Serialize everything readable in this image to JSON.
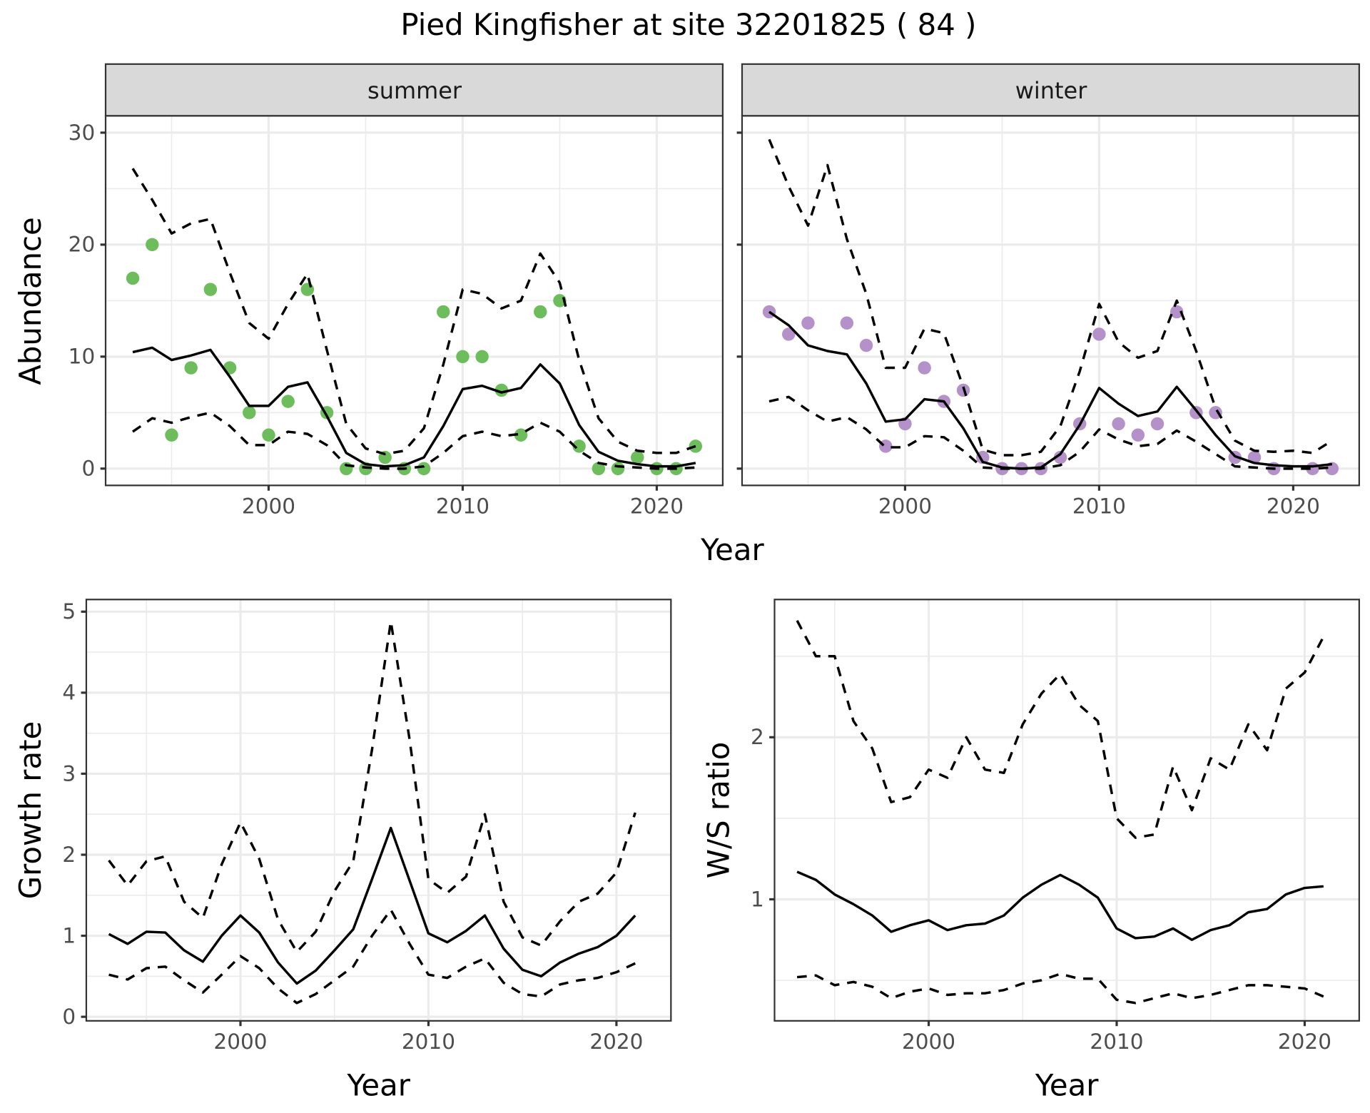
{
  "chart_data": {
    "title": "Pied Kingfisher at site 32201825 ( 84 )",
    "panels": [
      {
        "id": "summer",
        "type": "line",
        "facet_label": "summer",
        "xlabel": "Year",
        "ylabel": "Abundance",
        "xlim": [
          1991.6,
          2023.4
        ],
        "ylim": [
          -1.5,
          31.5
        ],
        "xticks": [
          2000,
          2010,
          2020
        ],
        "yticks": [
          0,
          10,
          20,
          30
        ],
        "grid": true,
        "point_color": "#6dbd5c",
        "x": [
          1993,
          1994,
          1995,
          1996,
          1997,
          1998,
          1999,
          2000,
          2001,
          2002,
          2003,
          2004,
          2005,
          2006,
          2007,
          2008,
          2009,
          2010,
          2011,
          2012,
          2013,
          2014,
          2015,
          2016,
          2017,
          2018,
          2019,
          2020,
          2021,
          2022
        ],
        "series": [
          {
            "name": "observed",
            "style": "points",
            "values": [
              17,
              20,
              3,
              9,
              16,
              9,
              5,
              3,
              6,
              16,
              5,
              0,
              0,
              1,
              0,
              0,
              14,
              10,
              10,
              7,
              3,
              14,
              15,
              2,
              0,
              0,
              1,
              0,
              0,
              2
            ]
          },
          {
            "name": "mean",
            "style": "solid",
            "values": [
              10.4,
              10.8,
              9.7,
              10.1,
              10.6,
              8.2,
              5.6,
              5.6,
              7.3,
              7.7,
              4.7,
              1.4,
              0.4,
              0.2,
              0.3,
              1.0,
              3.8,
              7.1,
              7.4,
              6.8,
              7.2,
              9.3,
              7.6,
              3.9,
              1.5,
              0.7,
              0.4,
              0.2,
              0.2,
              0.5
            ]
          },
          {
            "name": "upper",
            "style": "dashed",
            "values": [
              26.8,
              24.0,
              21.0,
              21.9,
              22.3,
              17.5,
              13.0,
              11.6,
              14.7,
              17.4,
              10.6,
              4.0,
              1.8,
              1.3,
              1.6,
              3.6,
              9.3,
              16.0,
              15.6,
              14.3,
              15.0,
              19.2,
              16.6,
              9.7,
              4.5,
              2.4,
              1.6,
              1.4,
              1.4,
              2.0
            ]
          },
          {
            "name": "lower",
            "style": "dashed",
            "values": [
              3.3,
              4.5,
              4.1,
              4.6,
              5.0,
              3.8,
              2.1,
              2.1,
              3.3,
              3.1,
              2.1,
              0.3,
              0.1,
              0.0,
              0.0,
              0.2,
              1.4,
              2.9,
              3.3,
              2.9,
              3.1,
              4.1,
              3.3,
              1.6,
              0.5,
              0.2,
              0.1,
              0.0,
              0.0,
              0.1
            ]
          }
        ]
      },
      {
        "id": "winter",
        "type": "line",
        "facet_label": "winter",
        "xlabel": "Year",
        "ylabel": "Abundance",
        "xlim": [
          1991.6,
          2023.4
        ],
        "ylim": [
          -1.5,
          31.5
        ],
        "xticks": [
          2000,
          2010,
          2020
        ],
        "yticks": [
          0,
          10,
          20,
          30
        ],
        "grid": true,
        "point_color": "#b491c8",
        "x": [
          1993,
          1994,
          1995,
          1996,
          1997,
          1998,
          1999,
          2000,
          2001,
          2002,
          2003,
          2004,
          2005,
          2006,
          2007,
          2008,
          2009,
          2010,
          2011,
          2012,
          2013,
          2014,
          2015,
          2016,
          2017,
          2018,
          2019,
          2020,
          2021,
          2022
        ],
        "series": [
          {
            "name": "observed",
            "style": "points",
            "values": [
              14,
              12,
              13,
              null,
              13,
              11,
              2,
              4,
              9,
              6,
              7,
              1,
              0,
              0,
              0,
              1,
              4,
              12,
              4,
              3,
              4,
              14,
              5,
              5,
              1,
              1,
              0,
              null,
              0,
              0
            ]
          },
          {
            "name": "mean",
            "style": "solid",
            "values": [
              14.0,
              12.8,
              11.0,
              10.5,
              10.2,
              7.6,
              4.2,
              4.4,
              6.2,
              6.0,
              3.6,
              0.6,
              0.1,
              0.0,
              0.1,
              1.3,
              3.9,
              7.2,
              5.8,
              4.7,
              5.1,
              7.3,
              5.2,
              3.0,
              1.1,
              0.5,
              0.3,
              0.2,
              0.2,
              0.4
            ]
          },
          {
            "name": "upper",
            "style": "dashed",
            "values": [
              29.4,
              25.2,
              21.7,
              27.1,
              20.5,
              15.6,
              9.0,
              9.0,
              12.5,
              12.1,
              7.3,
              1.7,
              1.2,
              1.2,
              1.5,
              3.8,
              8.7,
              14.7,
              11.3,
              9.9,
              10.5,
              15.0,
              10.5,
              5.4,
              2.5,
              1.6,
              1.5,
              1.6,
              1.4,
              2.5
            ]
          },
          {
            "name": "lower",
            "style": "dashed",
            "values": [
              6.0,
              6.4,
              5.2,
              4.2,
              4.6,
              3.5,
              1.9,
              1.9,
              2.9,
              2.8,
              1.6,
              0.1,
              0.0,
              0.0,
              0.0,
              0.3,
              1.5,
              3.5,
              2.6,
              2.0,
              2.2,
              3.4,
              2.4,
              1.3,
              0.2,
              0.1,
              0.0,
              0.0,
              0.0,
              0.1
            ]
          }
        ]
      },
      {
        "id": "growth",
        "type": "line",
        "xlabel": "Year",
        "ylabel": "Growth rate",
        "xlim": [
          1991.8,
          2022.9
        ],
        "ylim": [
          -0.05,
          5.15
        ],
        "xticks": [
          2000,
          2010,
          2020
        ],
        "yticks": [
          0,
          1,
          2,
          3,
          4,
          5
        ],
        "grid": true,
        "x": [
          1993,
          1994,
          1995,
          1996,
          1997,
          1998,
          1999,
          2000,
          2001,
          2002,
          2003,
          2004,
          2005,
          2006,
          2007,
          2008,
          2009,
          2010,
          2011,
          2012,
          2013,
          2014,
          2015,
          2016,
          2017,
          2018,
          2019,
          2020,
          2021
        ],
        "series": [
          {
            "name": "mean",
            "style": "solid",
            "values": [
              1.02,
              0.9,
              1.05,
              1.04,
              0.82,
              0.68,
              1.0,
              1.25,
              1.04,
              0.67,
              0.41,
              0.57,
              0.82,
              1.08,
              1.7,
              2.33,
              1.68,
              1.03,
              0.92,
              1.06,
              1.25,
              0.84,
              0.58,
              0.5,
              0.67,
              0.78,
              0.86,
              1.0,
              1.25
            ]
          },
          {
            "name": "upper",
            "style": "dashed",
            "values": [
              1.93,
              1.62,
              1.92,
              1.98,
              1.42,
              1.22,
              1.88,
              2.4,
              1.95,
              1.2,
              0.8,
              1.05,
              1.55,
              1.92,
              3.3,
              4.88,
              3.42,
              1.7,
              1.53,
              1.73,
              2.5,
              1.42,
              0.98,
              0.88,
              1.18,
              1.42,
              1.52,
              1.78,
              2.52
            ]
          },
          {
            "name": "lower",
            "style": "dashed",
            "values": [
              0.52,
              0.46,
              0.6,
              0.62,
              0.45,
              0.3,
              0.52,
              0.75,
              0.6,
              0.35,
              0.17,
              0.28,
              0.45,
              0.62,
              1.0,
              1.32,
              0.9,
              0.52,
              0.48,
              0.62,
              0.72,
              0.42,
              0.28,
              0.25,
              0.4,
              0.45,
              0.48,
              0.55,
              0.66
            ]
          }
        ]
      },
      {
        "id": "ratio",
        "type": "line",
        "xlabel": "Year",
        "ylabel": "W/S ratio",
        "xlim": [
          1991.8,
          2022.9
        ],
        "ylim": [
          0.25,
          2.85
        ],
        "xticks": [
          2000,
          2010,
          2020
        ],
        "yticks": [
          1,
          2
        ],
        "grid": true,
        "x": [
          1993,
          1994,
          1995,
          1996,
          1997,
          1998,
          1999,
          2000,
          2001,
          2002,
          2003,
          2004,
          2005,
          2006,
          2007,
          2008,
          2009,
          2010,
          2011,
          2012,
          2013,
          2014,
          2015,
          2016,
          2017,
          2018,
          2019,
          2020,
          2021
        ],
        "series": [
          {
            "name": "mean",
            "style": "solid",
            "values": [
              1.17,
              1.12,
              1.03,
              0.97,
              0.9,
              0.8,
              0.84,
              0.87,
              0.81,
              0.84,
              0.85,
              0.9,
              1.01,
              1.09,
              1.15,
              1.09,
              1.01,
              0.82,
              0.76,
              0.77,
              0.82,
              0.75,
              0.81,
              0.84,
              0.92,
              0.94,
              1.03,
              1.07,
              1.08
            ]
          },
          {
            "name": "upper",
            "style": "dashed",
            "values": [
              2.72,
              2.5,
              2.5,
              2.1,
              1.93,
              1.6,
              1.63,
              1.8,
              1.75,
              2.0,
              1.8,
              1.78,
              2.08,
              2.27,
              2.39,
              2.2,
              2.1,
              1.5,
              1.38,
              1.4,
              1.82,
              1.55,
              1.87,
              1.8,
              2.08,
              1.92,
              2.3,
              2.4,
              2.62
            ]
          },
          {
            "name": "lower",
            "style": "dashed",
            "values": [
              0.52,
              0.53,
              0.47,
              0.49,
              0.46,
              0.39,
              0.43,
              0.45,
              0.41,
              0.42,
              0.42,
              0.44,
              0.48,
              0.5,
              0.54,
              0.51,
              0.51,
              0.38,
              0.36,
              0.39,
              0.42,
              0.39,
              0.41,
              0.44,
              0.47,
              0.47,
              0.46,
              0.45,
              0.4
            ]
          }
        ]
      }
    ]
  }
}
